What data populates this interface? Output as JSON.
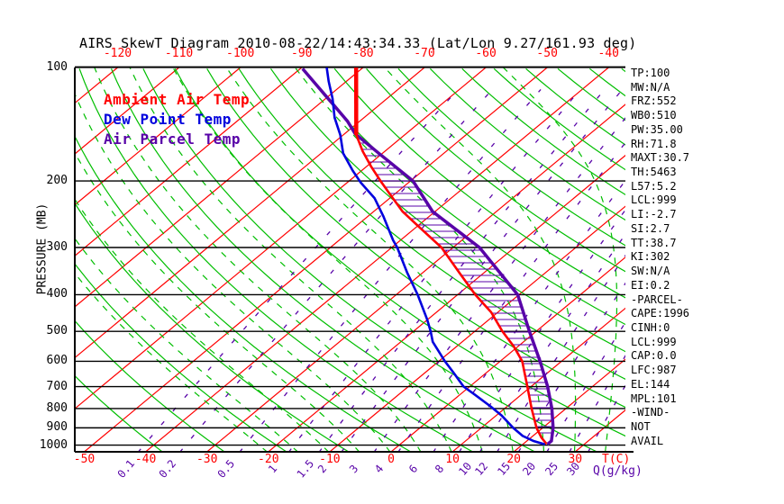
{
  "title": "AIRS SkewT Diagram 2010-08-22/14:43:34.33 (Lat/Lon 9.27/161.93 deg)",
  "legend": {
    "ambient": "Ambient Air Temp",
    "dew_point": "Dew Point Temp",
    "parcel": "Air Parcel Temp"
  },
  "axes": {
    "pressure_label": "PRESSURE (MB)",
    "pressure_ticks": [
      100,
      200,
      300,
      400,
      500,
      600,
      700,
      800,
      900,
      1000
    ],
    "top_temp_ticks": [
      -120,
      -110,
      -100,
      -90,
      -80,
      -70,
      -60,
      -50,
      -40
    ],
    "bottom_temp_ticks": [
      -50,
      -40,
      -30,
      -20,
      -10,
      0,
      10,
      20,
      30
    ],
    "temp_unit_label": "T(C)",
    "mixing_ratio_ticks": [
      "0.1",
      "0.2",
      "0.5",
      "1",
      "1.5",
      "2",
      "3",
      "4",
      "6",
      "8",
      "10",
      "12",
      "15",
      "20",
      "25",
      "30"
    ],
    "mixing_ratio_unit_label": "Q(g/kg)"
  },
  "stats": [
    "TP:100",
    "MW:N/A",
    "FRZ:552",
    "WB0:510",
    "PW:35.00",
    "RH:71.8",
    "MAXT:30.7",
    "TH:5463",
    "L57:5.2",
    "LCL:999",
    "LI:-2.7",
    "SI:2.7",
    "TT:38.7",
    "KI:302",
    "SW:N/A",
    "EI:0.2",
    "-PARCEL-",
    "CAPE:1996",
    "CINH:0",
    "LCL:999",
    "CAP:0.0",
    "LFC:987",
    "EL:144",
    "MPL:101",
    "-WIND-",
    "NOT",
    "AVAIL"
  ],
  "colors": {
    "ambient": "#ff0000",
    "dew_point": "#0000dd",
    "parcel": "#5803a8",
    "isotherm": "#ff0000",
    "dry_adiabat": "#00be00",
    "moist_adiabat": "#00be00",
    "mixing_ratio": "#5803a8",
    "grid": "#000000"
  },
  "chart_data": {
    "type": "line",
    "note": "Skew-T log-P sounding; points are [pressure_mb, temperature_C]",
    "pressure_range": [
      100,
      1000
    ],
    "series": [
      {
        "name": "Ambient Air Temp",
        "points": [
          [
            100,
            -81.2
          ],
          [
            151,
            -67.9
          ],
          [
            167,
            -63.6
          ],
          [
            183,
            -59.3
          ],
          [
            200,
            -54.9
          ],
          [
            220,
            -50.0
          ],
          [
            241,
            -45.3
          ],
          [
            269,
            -38.6
          ],
          [
            300,
            -31.9
          ],
          [
            350,
            -24.0
          ],
          [
            400,
            -17.1
          ],
          [
            445,
            -11.1
          ],
          [
            500,
            -5.5
          ],
          [
            548,
            -0.7
          ],
          [
            600,
            3.6
          ],
          [
            700,
            9.4
          ],
          [
            800,
            14.4
          ],
          [
            900,
            19.0
          ],
          [
            955,
            21.7
          ],
          [
            993,
            23.8
          ]
        ]
      },
      {
        "name": "Dew Point Temp",
        "points": [
          [
            100,
            -86.0
          ],
          [
            109,
            -82.9
          ],
          [
            121,
            -78.9
          ],
          [
            136,
            -74.8
          ],
          [
            151,
            -70.5
          ],
          [
            169,
            -66.4
          ],
          [
            188,
            -61.4
          ],
          [
            202,
            -57.8
          ],
          [
            222,
            -52.5
          ],
          [
            248,
            -47.5
          ],
          [
            287,
            -41.2
          ],
          [
            300,
            -39.1
          ],
          [
            350,
            -32.5
          ],
          [
            400,
            -26.5
          ],
          [
            465,
            -20.1
          ],
          [
            500,
            -17.2
          ],
          [
            533,
            -14.8
          ],
          [
            600,
            -9.0
          ],
          [
            645,
            -5.2
          ],
          [
            700,
            -1.0
          ],
          [
            735,
            2.4
          ],
          [
            792,
            7.5
          ],
          [
            835,
            10.9
          ],
          [
            900,
            15.2
          ],
          [
            945,
            18.3
          ],
          [
            975,
            21.1
          ],
          [
            995,
            23.6
          ]
        ]
      },
      {
        "name": "Air Parcel Temp",
        "points": [
          [
            101,
            -89.6
          ],
          [
            112,
            -83.9
          ],
          [
            126,
            -77.4
          ],
          [
            139,
            -72.0
          ],
          [
            150,
            -68.3
          ],
          [
            169,
            -60.6
          ],
          [
            200,
            -49.6
          ],
          [
            241,
            -40.4
          ],
          [
            300,
            -25.7
          ],
          [
            350,
            -17.4
          ],
          [
            400,
            -10.2
          ],
          [
            500,
            -1.1
          ],
          [
            600,
            6.5
          ],
          [
            700,
            12.7
          ],
          [
            800,
            17.7
          ],
          [
            900,
            21.7
          ],
          [
            975,
            24.0
          ],
          [
            995,
            24.0
          ]
        ]
      }
    ]
  }
}
